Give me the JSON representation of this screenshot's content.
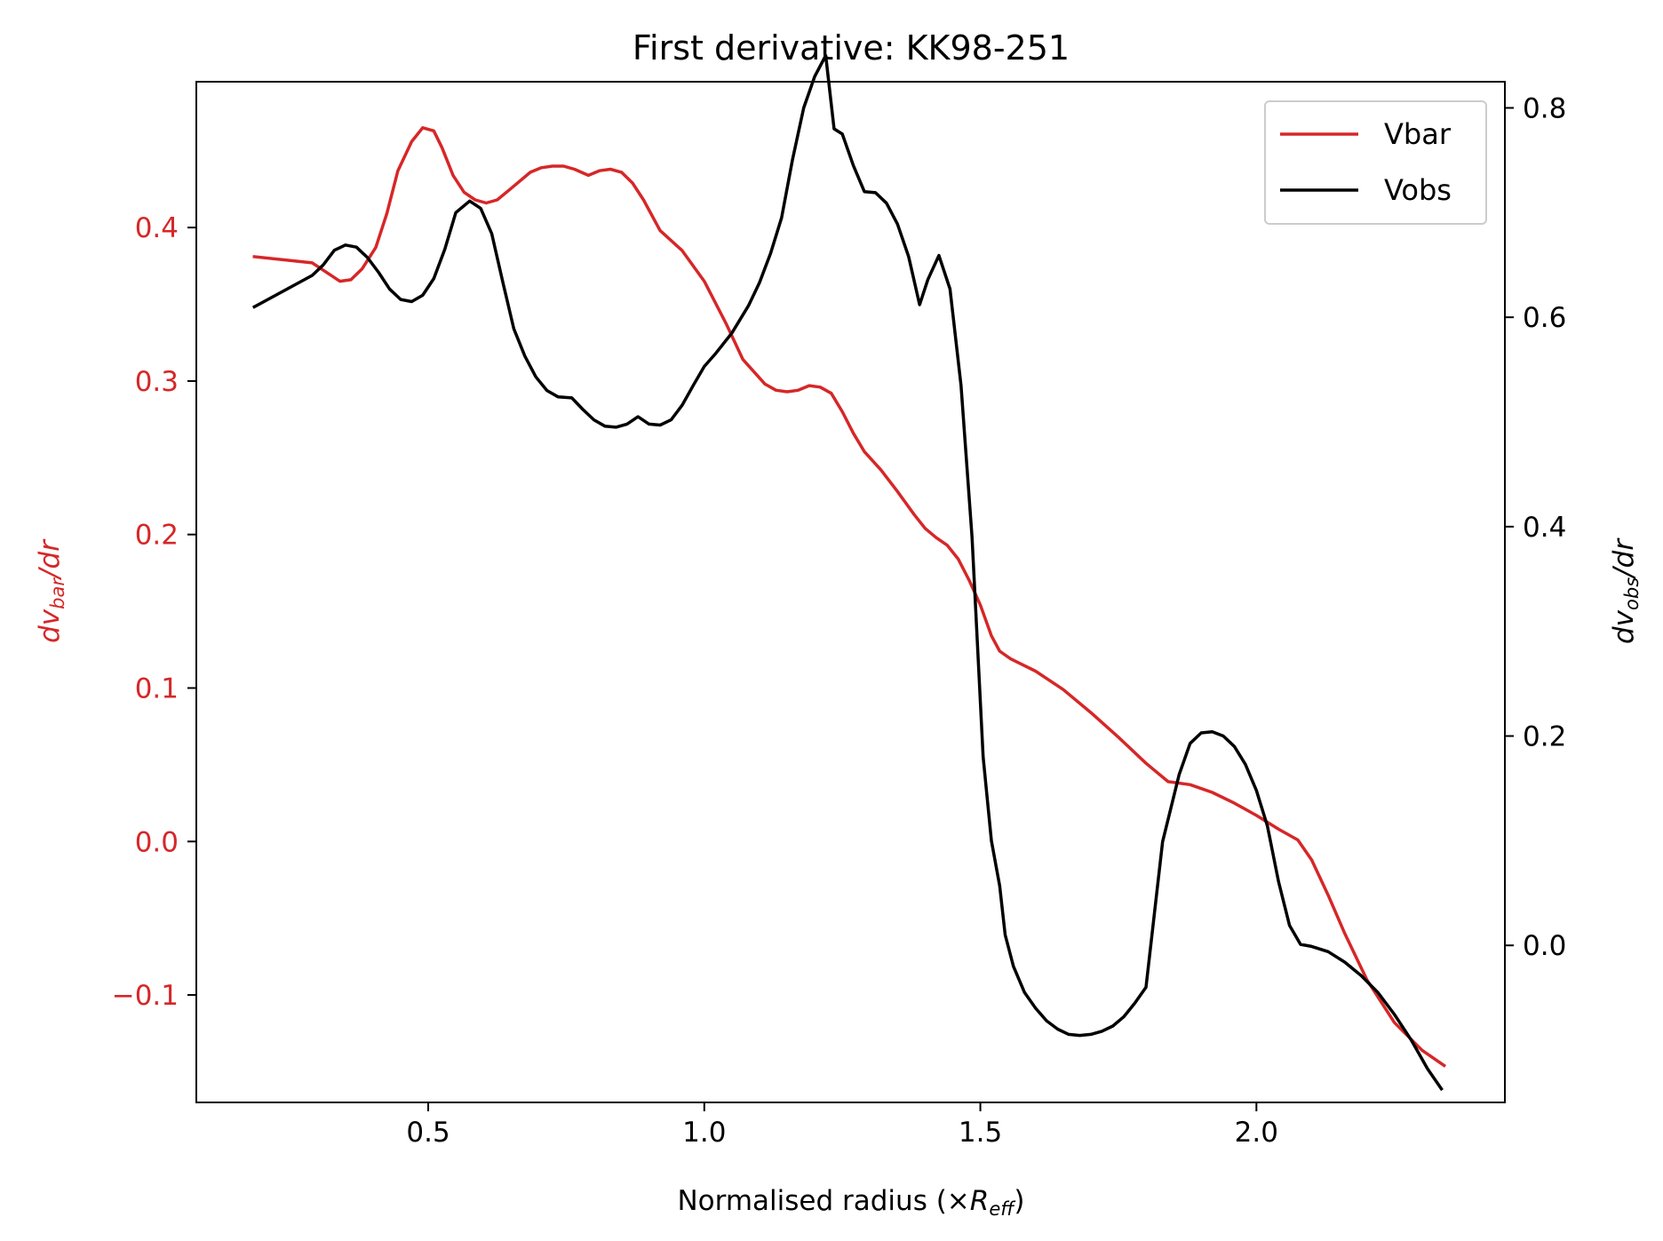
{
  "chart_data": {
    "type": "line",
    "title": "First derivative: KK98-251",
    "xlabel": {
      "prefix": "Normalised radius (×",
      "var": "R",
      "sub": "eff",
      "suffix": ")"
    },
    "ylabel_left": {
      "var": "dv",
      "sub": "bar",
      "suffix": "/dr"
    },
    "ylabel_right": {
      "var": "dv",
      "sub": "obs",
      "suffix": "/dr"
    },
    "xlim": [
      0.08,
      2.45
    ],
    "ylim_left": [
      -0.17,
      0.495
    ],
    "ylim_right": [
      -0.15,
      0.825
    ],
    "x_ticks": [
      0.5,
      1.0,
      1.5,
      2.0
    ],
    "x_tick_labels": [
      "0.5",
      "1.0",
      "1.5",
      "2.0"
    ],
    "y_left_ticks": [
      -0.1,
      0.0,
      0.1,
      0.2,
      0.3,
      0.4
    ],
    "y_left_tick_labels": [
      "−0.1",
      "0.0",
      "0.1",
      "0.2",
      "0.3",
      "0.4"
    ],
    "y_right_ticks": [
      0.0,
      0.2,
      0.4,
      0.6,
      0.8
    ],
    "y_right_tick_labels": [
      "0.0",
      "0.2",
      "0.4",
      "0.6",
      "0.8"
    ],
    "legend_position": "top-right",
    "grid": false,
    "colors": {
      "vbar": "#d62728",
      "vobs": "#000000",
      "left_axis": "#d62728",
      "right_axis": "#000000"
    },
    "series": [
      {
        "name": "Vbar",
        "axis": "left",
        "color": "#d62728",
        "x": [
          0.185,
          0.29,
          0.34,
          0.36,
          0.38,
          0.405,
          0.425,
          0.445,
          0.47,
          0.49,
          0.51,
          0.525,
          0.545,
          0.565,
          0.585,
          0.605,
          0.625,
          0.645,
          0.665,
          0.685,
          0.705,
          0.725,
          0.745,
          0.765,
          0.79,
          0.81,
          0.83,
          0.85,
          0.87,
          0.89,
          0.92,
          0.96,
          1.0,
          1.04,
          1.07,
          1.11,
          1.13,
          1.15,
          1.17,
          1.19,
          1.21,
          1.23,
          1.25,
          1.27,
          1.29,
          1.32,
          1.35,
          1.38,
          1.4,
          1.42,
          1.44,
          1.46,
          1.48,
          1.5,
          1.52,
          1.535,
          1.555,
          1.6,
          1.65,
          1.7,
          1.75,
          1.8,
          1.84,
          1.88,
          1.92,
          1.96,
          2.0,
          2.04,
          2.075,
          2.1,
          2.13,
          2.16,
          2.2,
          2.25,
          2.3,
          2.34
        ],
        "y": [
          0.381,
          0.377,
          0.365,
          0.366,
          0.373,
          0.387,
          0.409,
          0.437,
          0.456,
          0.465,
          0.463,
          0.452,
          0.434,
          0.423,
          0.418,
          0.416,
          0.418,
          0.424,
          0.43,
          0.436,
          0.439,
          0.44,
          0.44,
          0.438,
          0.434,
          0.437,
          0.438,
          0.436,
          0.429,
          0.418,
          0.398,
          0.385,
          0.365,
          0.337,
          0.314,
          0.298,
          0.294,
          0.293,
          0.294,
          0.297,
          0.296,
          0.292,
          0.28,
          0.266,
          0.254,
          0.242,
          0.228,
          0.213,
          0.204,
          0.198,
          0.193,
          0.184,
          0.17,
          0.154,
          0.134,
          0.124,
          0.119,
          0.111,
          0.099,
          0.084,
          0.068,
          0.051,
          0.039,
          0.037,
          0.032,
          0.025,
          0.017,
          0.008,
          0.001,
          -0.012,
          -0.035,
          -0.06,
          -0.09,
          -0.118,
          -0.136,
          -0.146
        ]
      },
      {
        "name": "Vobs",
        "axis": "right",
        "color": "#000000",
        "x": [
          0.185,
          0.29,
          0.31,
          0.33,
          0.35,
          0.37,
          0.39,
          0.41,
          0.43,
          0.45,
          0.47,
          0.49,
          0.51,
          0.53,
          0.55,
          0.575,
          0.595,
          0.615,
          0.635,
          0.655,
          0.675,
          0.695,
          0.715,
          0.735,
          0.76,
          0.78,
          0.8,
          0.82,
          0.84,
          0.86,
          0.88,
          0.9,
          0.92,
          0.94,
          0.96,
          0.98,
          1.0,
          1.02,
          1.05,
          1.08,
          1.1,
          1.12,
          1.14,
          1.16,
          1.18,
          1.2,
          1.22,
          1.235,
          1.25,
          1.27,
          1.29,
          1.31,
          1.33,
          1.35,
          1.37,
          1.39,
          1.405,
          1.425,
          1.445,
          1.465,
          1.485,
          1.505,
          1.52,
          1.535,
          1.545,
          1.56,
          1.58,
          1.6,
          1.62,
          1.64,
          1.66,
          1.68,
          1.7,
          1.72,
          1.74,
          1.76,
          1.78,
          1.8,
          1.83,
          1.86,
          1.88,
          1.9,
          1.92,
          1.94,
          1.96,
          1.98,
          2.0,
          2.02,
          2.04,
          2.06,
          2.08,
          2.1,
          2.13,
          2.16,
          2.19,
          2.22,
          2.25,
          2.28,
          2.31,
          2.335
        ],
        "y": [
          0.61,
          0.64,
          0.65,
          0.664,
          0.669,
          0.667,
          0.657,
          0.643,
          0.627,
          0.617,
          0.615,
          0.621,
          0.637,
          0.665,
          0.7,
          0.711,
          0.704,
          0.68,
          0.634,
          0.589,
          0.563,
          0.543,
          0.53,
          0.524,
          0.523,
          0.512,
          0.502,
          0.496,
          0.495,
          0.498,
          0.505,
          0.498,
          0.497,
          0.502,
          0.516,
          0.535,
          0.553,
          0.565,
          0.585,
          0.611,
          0.633,
          0.661,
          0.695,
          0.751,
          0.8,
          0.83,
          0.85,
          0.78,
          0.775,
          0.745,
          0.72,
          0.719,
          0.709,
          0.689,
          0.658,
          0.612,
          0.636,
          0.659,
          0.627,
          0.535,
          0.39,
          0.18,
          0.1,
          0.057,
          0.01,
          -0.02,
          -0.045,
          -0.06,
          -0.072,
          -0.08,
          -0.085,
          -0.086,
          -0.085,
          -0.082,
          -0.077,
          -0.068,
          -0.055,
          -0.04,
          0.099,
          0.163,
          0.193,
          0.203,
          0.204,
          0.2,
          0.19,
          0.173,
          0.148,
          0.114,
          0.061,
          0.019,
          0.001,
          -0.001,
          -0.006,
          -0.016,
          -0.029,
          -0.045,
          -0.066,
          -0.09,
          -0.118,
          -0.137
        ]
      }
    ]
  }
}
